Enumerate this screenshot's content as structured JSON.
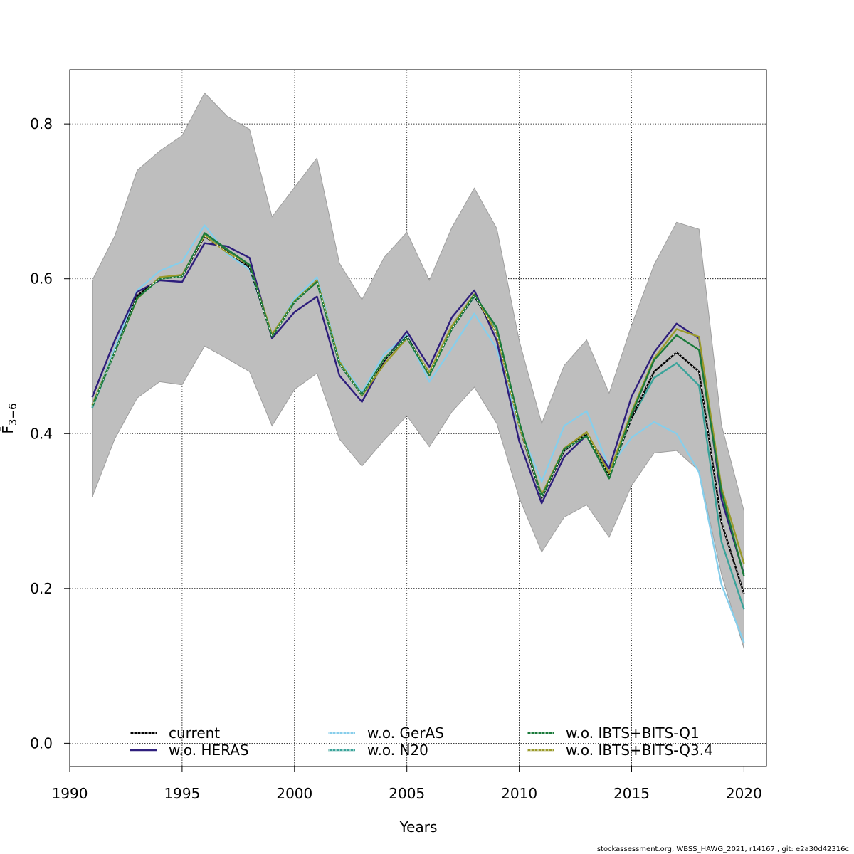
{
  "chart_data": {
    "type": "line",
    "xlabel": "Years",
    "ylabel": "F̄",
    "ylabel_sub": "3−6",
    "xlim": [
      1990,
      2021
    ],
    "ylim": [
      -0.03,
      0.87
    ],
    "xticks": [
      "1990",
      "1995",
      "2000",
      "2005",
      "2010",
      "2015",
      "2020"
    ],
    "yticks": [
      "0.0",
      "0.2",
      "0.4",
      "0.6",
      "0.8"
    ],
    "grid": true,
    "legend_position": "bottom",
    "credit": "stockassessment.org, WBSS_HAWG_2021, r14167 , git: e2a30d42316c",
    "x": [
      1991,
      1992,
      1993,
      1994,
      1995,
      1996,
      1997,
      1998,
      1999,
      2000,
      2001,
      2002,
      2003,
      2004,
      2005,
      2006,
      2007,
      2008,
      2009,
      2010,
      2011,
      2012,
      2013,
      2014,
      2015,
      2016,
      2017,
      2018,
      2019,
      2020
    ],
    "band": {
      "color": "#bebebe",
      "upper": [
        0.598,
        0.655,
        0.74,
        0.765,
        0.785,
        0.84,
        0.81,
        0.793,
        0.68,
        0.718,
        0.756,
        0.62,
        0.573,
        0.628,
        0.66,
        0.598,
        0.666,
        0.717,
        0.665,
        0.52,
        0.413,
        0.488,
        0.521,
        0.452,
        0.54,
        0.618,
        0.673,
        0.664,
        0.411,
        0.3
      ],
      "lower": [
        0.318,
        0.393,
        0.446,
        0.467,
        0.463,
        0.513,
        0.497,
        0.48,
        0.41,
        0.457,
        0.478,
        0.393,
        0.358,
        0.392,
        0.423,
        0.383,
        0.428,
        0.46,
        0.413,
        0.317,
        0.247,
        0.292,
        0.308,
        0.266,
        0.333,
        0.375,
        0.378,
        0.352,
        0.218,
        0.122
      ]
    },
    "series": [
      {
        "name": "current",
        "color": "#000000",
        "dash": "",
        "values": [
          0.435,
          0.505,
          0.578,
          0.6,
          0.603,
          0.655,
          0.635,
          0.615,
          0.525,
          0.57,
          0.598,
          0.49,
          0.45,
          0.495,
          0.525,
          0.477,
          0.535,
          0.578,
          0.53,
          0.41,
          0.317,
          0.378,
          0.4,
          0.345,
          0.42,
          0.48,
          0.505,
          0.48,
          0.285,
          0.193
        ]
      },
      {
        "name": "w.o. HERAS",
        "color": "#2e1e7c",
        "dash": "",
        "values": [
          0.447,
          0.52,
          0.583,
          0.598,
          0.596,
          0.646,
          0.642,
          0.627,
          0.523,
          0.557,
          0.577,
          0.475,
          0.441,
          0.494,
          0.532,
          0.486,
          0.55,
          0.585,
          0.52,
          0.39,
          0.31,
          0.37,
          0.398,
          0.355,
          0.448,
          0.505,
          0.542,
          0.523,
          0.315,
          0.218
        ]
      },
      {
        "name": "w.o. GerAS",
        "color": "#87ceeb",
        "dash": "",
        "values": [
          0.434,
          0.51,
          0.585,
          0.61,
          0.622,
          0.669,
          0.632,
          0.612,
          0.527,
          0.574,
          0.602,
          0.495,
          0.453,
          0.503,
          0.527,
          0.467,
          0.51,
          0.555,
          0.51,
          0.408,
          0.338,
          0.41,
          0.429,
          0.356,
          0.395,
          0.415,
          0.4,
          0.35,
          0.205,
          0.13
        ]
      },
      {
        "name": "w.o. N20",
        "color": "#3aa39a",
        "dash": "",
        "values": [
          0.433,
          0.505,
          0.575,
          0.6,
          0.604,
          0.658,
          0.635,
          0.615,
          0.526,
          0.57,
          0.598,
          0.49,
          0.451,
          0.495,
          0.526,
          0.477,
          0.535,
          0.577,
          0.532,
          0.412,
          0.319,
          0.378,
          0.399,
          0.344,
          0.42,
          0.472,
          0.491,
          0.462,
          0.26,
          0.173
        ]
      },
      {
        "name": "w.o. IBTS+BITS-Q1",
        "color": "#1a7a3a",
        "dash": "",
        "values": [
          0.435,
          0.505,
          0.575,
          0.6,
          0.603,
          0.659,
          0.638,
          0.618,
          0.525,
          0.57,
          0.596,
          0.49,
          0.45,
          0.497,
          0.524,
          0.475,
          0.535,
          0.579,
          0.537,
          0.415,
          0.318,
          0.38,
          0.397,
          0.342,
          0.425,
          0.495,
          0.527,
          0.508,
          0.325,
          0.216
        ]
      },
      {
        "name": "w.o. IBTS+BITS-Q3.4",
        "color": "#9a9a2a",
        "dash": "",
        "values": [
          0.437,
          0.505,
          0.574,
          0.602,
          0.605,
          0.656,
          0.634,
          0.618,
          0.528,
          0.571,
          0.598,
          0.493,
          0.449,
          0.49,
          0.523,
          0.479,
          0.539,
          0.58,
          0.53,
          0.41,
          0.321,
          0.381,
          0.402,
          0.349,
          0.428,
          0.497,
          0.535,
          0.525,
          0.33,
          0.232
        ]
      }
    ]
  }
}
